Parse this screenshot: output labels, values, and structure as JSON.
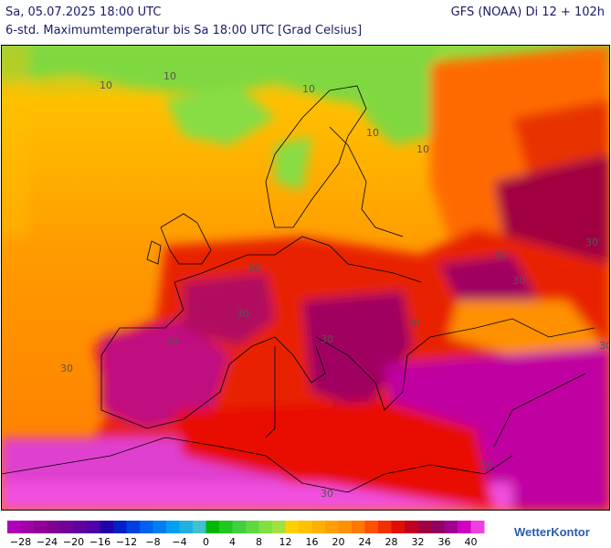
{
  "header": {
    "left_title": "Sa, 05.07.2025 18:00 UTC",
    "right_title": "GFS (NOAA) Di 12 + 102h",
    "subtitle": "6-std. Maximumtemperatur bis Sa 18:00 UTC [Grad Celsius]"
  },
  "map": {
    "contour_labels": [
      "10",
      "10",
      "10",
      "10",
      "10",
      "30",
      "30",
      "30",
      "30",
      "30",
      "30",
      "30",
      "30",
      "30",
      "30",
      "30",
      "30"
    ]
  },
  "colorbar": {
    "range": [
      -30,
      42
    ],
    "colors": [
      "#b000b8",
      "#a000a8",
      "#900098",
      "#800090",
      "#700098",
      "#6000a0",
      "#5000a8",
      "#2000a8",
      "#0020c8",
      "#0040e0",
      "#0060f0",
      "#0080f0",
      "#00a0f0",
      "#20b0e0",
      "#40c0d0",
      "#00b800",
      "#20c820",
      "#40d040",
      "#60d840",
      "#80e040",
      "#a0e040",
      "#ffd000",
      "#ffc000",
      "#ffb000",
      "#ffa000",
      "#ff9000",
      "#ff7800",
      "#ff5000",
      "#f03000",
      "#e01000",
      "#c00020",
      "#a00040",
      "#900060",
      "#a00090",
      "#d000c0",
      "#f040e0"
    ],
    "ticks": [
      {
        "value": -28,
        "label": "−28"
      },
      {
        "value": -24,
        "label": "−24"
      },
      {
        "value": -20,
        "label": "−20"
      },
      {
        "value": -16,
        "label": "−16"
      },
      {
        "value": -12,
        "label": "−12"
      },
      {
        "value": -8,
        "label": "−8"
      },
      {
        "value": -4,
        "label": "−4"
      },
      0,
      4,
      8,
      12,
      16,
      20,
      24,
      28,
      32,
      36,
      40
    ]
  },
  "logo": {
    "text": "WetterKontor"
  }
}
